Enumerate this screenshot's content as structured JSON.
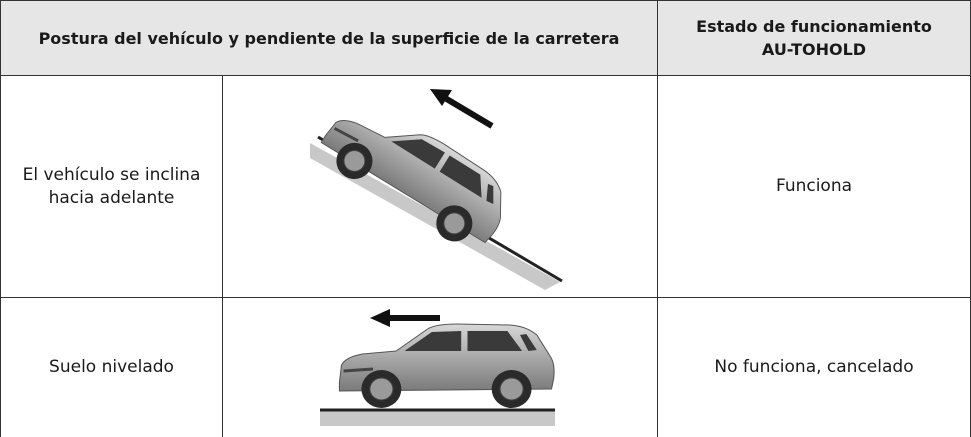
{
  "table": {
    "header": [
      "Postura del vehículo y pendiente de la superficie de la carretera",
      "Estado de funcionamiento AU-TOHOLD"
    ],
    "rows": [
      [
        "El vehículo se inclina hacia adelante",
        "Funciona"
      ],
      [
        "Suelo nivelado",
        "No funciona, cancelado"
      ]
    ]
  }
}
